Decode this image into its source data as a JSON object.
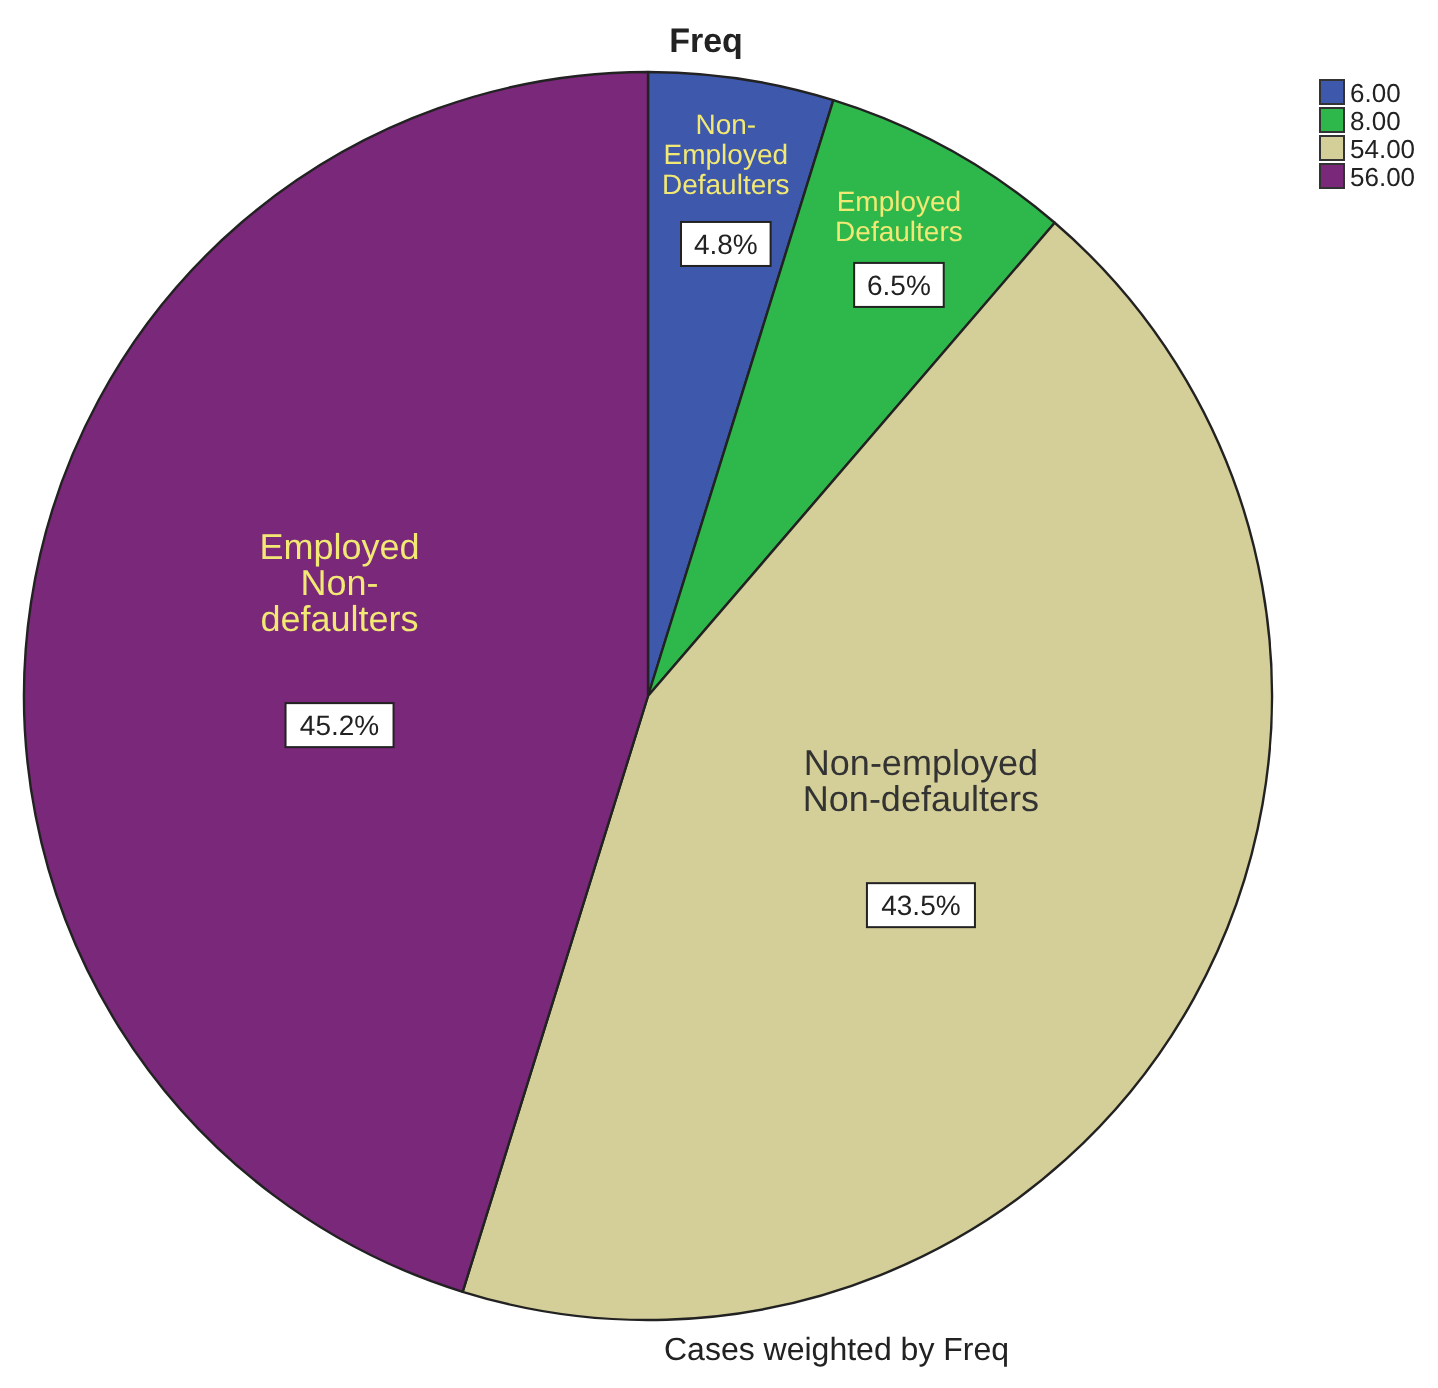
{
  "chart_data": {
    "type": "pie",
    "title": "Freq",
    "categories": [
      "6.00",
      "8.00",
      "54.00",
      "56.00"
    ],
    "values": [
      4.8,
      6.5,
      43.5,
      45.2
    ],
    "colors": [
      "#3e58ac",
      "#2eb84b",
      "#d4cf98",
      "#7a287a"
    ],
    "value_labels": [
      "4.8%",
      "6.5%",
      "43.5%",
      "45.2%"
    ],
    "legend": "top right",
    "annotations": [
      {
        "text": "Non-\nEmployed\nDefaulters",
        "x": "6.00"
      },
      {
        "text": "Employed\nDefaulters",
        "x": "8.00"
      },
      {
        "text": "Non-employed\nNon-defaulters",
        "x": "54.00"
      },
      {
        "text": "Employed\nNon-\ndefaulters",
        "x": "56.00"
      },
      "Cases weighted by Freq"
    ]
  }
}
